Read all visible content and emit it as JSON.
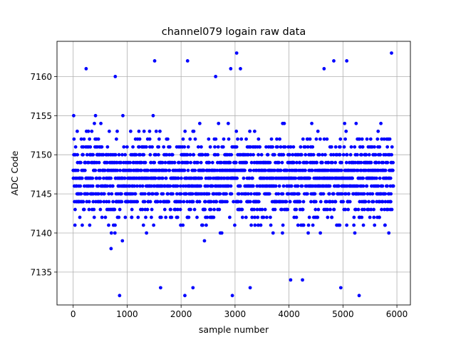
{
  "chart_data": {
    "type": "scatter",
    "title": "channel079 logain raw data",
    "xlabel": "sample number",
    "ylabel": "ADC Code",
    "xlim": [
      -300,
      6250
    ],
    "ylim": [
      7130.8,
      7164.5
    ],
    "xticks": [
      0,
      1000,
      2000,
      3000,
      4000,
      5000,
      6000
    ],
    "yticks": [
      7135,
      7140,
      7145,
      7150,
      7155,
      7160
    ],
    "grid": true,
    "series": [
      {
        "color": "#0000ff",
        "n_samples": 5936,
        "value_range": [
          7132,
          7163
        ],
        "typical_range": [
          7137,
          7157
        ],
        "center": 7147,
        "extreme_points": [
          {
            "x": 240,
            "y": 7161
          },
          {
            "x": 780,
            "y": 7160
          },
          {
            "x": 860,
            "y": 7132
          },
          {
            "x": 1510,
            "y": 7162
          },
          {
            "x": 1620,
            "y": 7133
          },
          {
            "x": 2070,
            "y": 7132
          },
          {
            "x": 2120,
            "y": 7162
          },
          {
            "x": 2220,
            "y": 7133
          },
          {
            "x": 2640,
            "y": 7160
          },
          {
            "x": 2920,
            "y": 7161
          },
          {
            "x": 2950,
            "y": 7132
          },
          {
            "x": 3030,
            "y": 7163
          },
          {
            "x": 3100,
            "y": 7161
          },
          {
            "x": 3280,
            "y": 7133
          },
          {
            "x": 4030,
            "y": 7134
          },
          {
            "x": 4250,
            "y": 7134
          },
          {
            "x": 4650,
            "y": 7161
          },
          {
            "x": 4830,
            "y": 7162
          },
          {
            "x": 4960,
            "y": 7133
          },
          {
            "x": 5070,
            "y": 7162
          },
          {
            "x": 5300,
            "y": 7132
          },
          {
            "x": 5900,
            "y": 7163
          }
        ]
      }
    ]
  }
}
